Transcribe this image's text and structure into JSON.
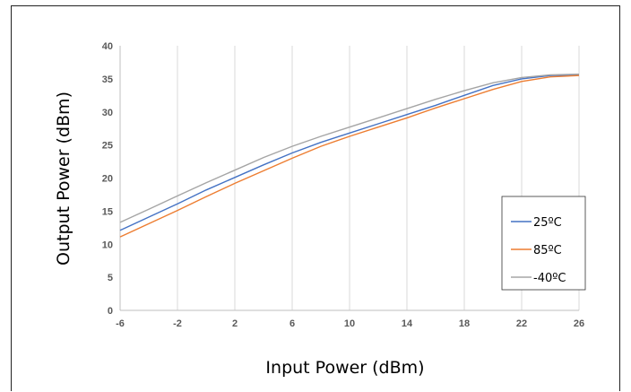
{
  "chart_data": {
    "type": "line",
    "xlabel": "Input Power (dBm)",
    "ylabel": "Output Power (dBm)",
    "xlim": [
      -6,
      26
    ],
    "ylim": [
      0,
      40
    ],
    "x_ticks": [
      "-6",
      "-2",
      "2",
      "6",
      "10",
      "14",
      "18",
      "22",
      "26"
    ],
    "y_ticks": [
      "0",
      "5",
      "10",
      "15",
      "20",
      "25",
      "30",
      "35",
      "40"
    ],
    "grid": "vertical",
    "legend": "right",
    "x": [
      -6,
      -4,
      -2,
      0,
      2,
      4,
      6,
      8,
      10,
      12,
      14,
      16,
      18,
      20,
      22,
      24,
      26
    ],
    "series": [
      {
        "name": "25ºC",
        "color": "#4472C4",
        "values": [
          12.1,
          14.1,
          16.1,
          18.2,
          20.1,
          22.0,
          23.8,
          25.4,
          26.8,
          28.2,
          29.6,
          31.0,
          32.5,
          34.0,
          35.0,
          35.5,
          35.6
        ]
      },
      {
        "name": "85ºC",
        "color": "#ED7D31",
        "values": [
          11.1,
          13.1,
          15.1,
          17.2,
          19.2,
          21.1,
          23.0,
          24.8,
          26.3,
          27.7,
          29.1,
          30.6,
          32.0,
          33.4,
          34.6,
          35.3,
          35.5
        ]
      },
      {
        "name": "-40ºC",
        "color": "#A5A5A5",
        "values": [
          13.3,
          15.3,
          17.3,
          19.3,
          21.2,
          23.1,
          24.8,
          26.3,
          27.7,
          29.1,
          30.5,
          31.9,
          33.2,
          34.4,
          35.2,
          35.6,
          35.7
        ]
      }
    ]
  }
}
